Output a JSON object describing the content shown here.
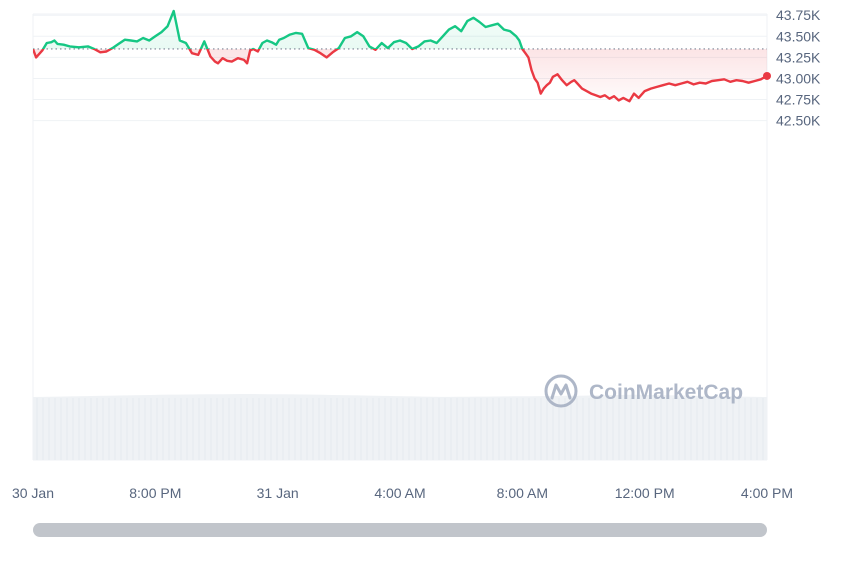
{
  "watermark": {
    "text": "CoinMarketCap",
    "icon": "coinmarketcap-logo-icon"
  },
  "colors": {
    "up": "#16c784",
    "down": "#ea3943",
    "grid": "#eff2f5",
    "volume": "#eff2f5",
    "baseline": "#a6b0c3",
    "axis_text": "#58667e"
  },
  "chart_data": {
    "type": "line",
    "title": "",
    "xlabel": "",
    "ylabel": "",
    "ylim": [
      42.45,
      43.9
    ],
    "baseline": 43.35,
    "grid": true,
    "y_ticks": [
      43.75,
      43.5,
      43.25,
      43.0,
      42.75,
      42.5
    ],
    "y_tick_labels": [
      "43.75K",
      "43.50K",
      "43.25K",
      "43.00K",
      "42.75K",
      "42.50K"
    ],
    "x_ticks": [
      0,
      4,
      8,
      12,
      16,
      20,
      24
    ],
    "x_tick_labels": [
      "30 Jan",
      "8:00 PM",
      "31 Jan",
      "4:00 AM",
      "8:00 AM",
      "12:00 PM",
      "4:00 PM"
    ],
    "xlim": [
      0,
      24
    ],
    "series": [
      {
        "x": [
          0,
          0.1,
          0.3,
          0.45,
          0.6,
          0.7,
          0.8,
          1.0,
          1.2,
          1.5,
          1.8,
          2.0,
          2.2,
          2.4,
          2.6,
          2.8,
          3.0,
          3.2,
          3.4,
          3.6,
          3.8,
          4.0,
          4.2,
          4.4,
          4.6,
          4.8,
          5.0,
          5.2,
          5.4,
          5.6,
          5.8,
          5.95,
          6.05,
          6.2,
          6.35,
          6.5,
          6.7,
          6.9,
          7.0,
          7.1,
          7.2,
          7.35,
          7.5,
          7.65,
          7.8,
          7.95,
          8.05,
          8.2,
          8.4,
          8.6,
          8.8,
          9.0,
          9.2,
          9.4,
          9.6,
          9.8,
          10.0,
          10.2,
          10.4,
          10.6,
          10.8,
          11.0,
          11.2,
          11.4,
          11.6,
          11.8,
          12.0,
          12.2,
          12.4,
          12.6,
          12.8,
          13.0,
          13.2,
          13.4,
          13.6,
          13.8,
          14.0,
          14.2,
          14.4,
          14.6,
          14.8,
          15.0,
          15.2,
          15.4,
          15.6,
          15.8,
          15.9,
          16.0,
          16.1,
          16.2,
          16.3,
          16.4,
          16.5,
          16.6,
          16.7,
          16.8,
          16.9,
          17.0,
          17.15,
          17.3,
          17.45,
          17.6,
          17.7,
          17.8,
          17.95,
          18.1,
          18.25,
          18.4,
          18.55,
          18.7,
          18.85,
          19.0,
          19.15,
          19.3,
          19.5,
          19.65,
          19.8,
          20.0,
          20.2,
          20.4,
          20.6,
          20.8,
          21.0,
          21.2,
          21.4,
          21.6,
          21.8,
          22.0,
          22.2,
          22.4,
          22.6,
          22.8,
          23.0,
          23.2,
          23.4,
          23.6,
          23.8,
          24.0
        ],
        "values": [
          43.35,
          43.25,
          43.33,
          43.42,
          43.43,
          43.45,
          43.41,
          43.4,
          43.38,
          43.37,
          43.38,
          43.35,
          43.31,
          43.32,
          43.36,
          43.41,
          43.46,
          43.45,
          43.44,
          43.48,
          43.45,
          43.5,
          43.55,
          43.62,
          43.8,
          43.45,
          43.42,
          43.3,
          43.28,
          43.44,
          43.26,
          43.2,
          43.18,
          43.24,
          43.21,
          43.2,
          43.24,
          43.22,
          43.18,
          43.33,
          43.35,
          43.32,
          43.42,
          43.45,
          43.43,
          43.4,
          43.46,
          43.48,
          43.52,
          43.54,
          43.53,
          43.36,
          43.34,
          43.3,
          43.25,
          43.31,
          43.36,
          43.48,
          43.5,
          43.55,
          43.5,
          43.38,
          43.34,
          43.42,
          43.36,
          43.43,
          43.45,
          43.42,
          43.35,
          43.38,
          43.44,
          43.45,
          43.42,
          43.5,
          43.58,
          43.62,
          43.56,
          43.68,
          43.72,
          43.67,
          43.61,
          43.63,
          43.65,
          43.58,
          43.56,
          43.5,
          43.45,
          43.35,
          43.3,
          43.25,
          43.1,
          43.0,
          42.95,
          42.82,
          42.88,
          42.92,
          42.95,
          43.02,
          43.05,
          42.98,
          42.92,
          42.96,
          42.98,
          42.94,
          42.88,
          42.85,
          42.82,
          42.8,
          42.78,
          42.8,
          42.76,
          42.79,
          42.74,
          42.77,
          42.73,
          42.82,
          42.77,
          42.85,
          42.88,
          42.9,
          42.92,
          42.94,
          42.92,
          42.94,
          42.96,
          42.93,
          42.95,
          42.94,
          42.97,
          42.98,
          42.99,
          42.96,
          42.98,
          42.97,
          42.95,
          42.97,
          42.99,
          43.03
        ]
      }
    ],
    "volume": [
      0.62,
      0.64,
      0.66,
      0.68,
      0.7,
      0.72,
      0.74,
      0.76,
      0.78,
      0.8,
      0.82,
      0.84,
      0.86,
      0.88,
      0.9,
      0.92,
      0.93,
      0.94,
      0.95,
      0.96,
      0.97,
      0.98,
      0.99,
      1.0,
      1.0,
      0.99,
      0.98,
      0.97,
      0.96,
      0.95,
      0.94,
      0.93,
      0.9,
      0.88,
      0.86,
      0.84,
      0.82,
      0.8,
      0.78,
      0.76,
      0.74,
      0.72,
      0.7,
      0.68,
      0.66,
      0.64,
      0.64,
      0.65,
      0.66,
      0.67,
      0.68,
      0.69,
      0.7,
      0.71,
      0.72,
      0.73,
      0.74,
      0.75,
      0.76,
      0.77,
      0.78,
      0.8,
      0.82,
      0.84,
      0.86,
      0.88,
      0.9,
      0.9,
      0.88,
      0.86,
      0.84,
      0.82,
      0.8,
      0.78,
      0.76,
      0.74,
      0.72,
      0.7,
      0.68,
      0.66,
      0.64,
      0.62
    ]
  }
}
